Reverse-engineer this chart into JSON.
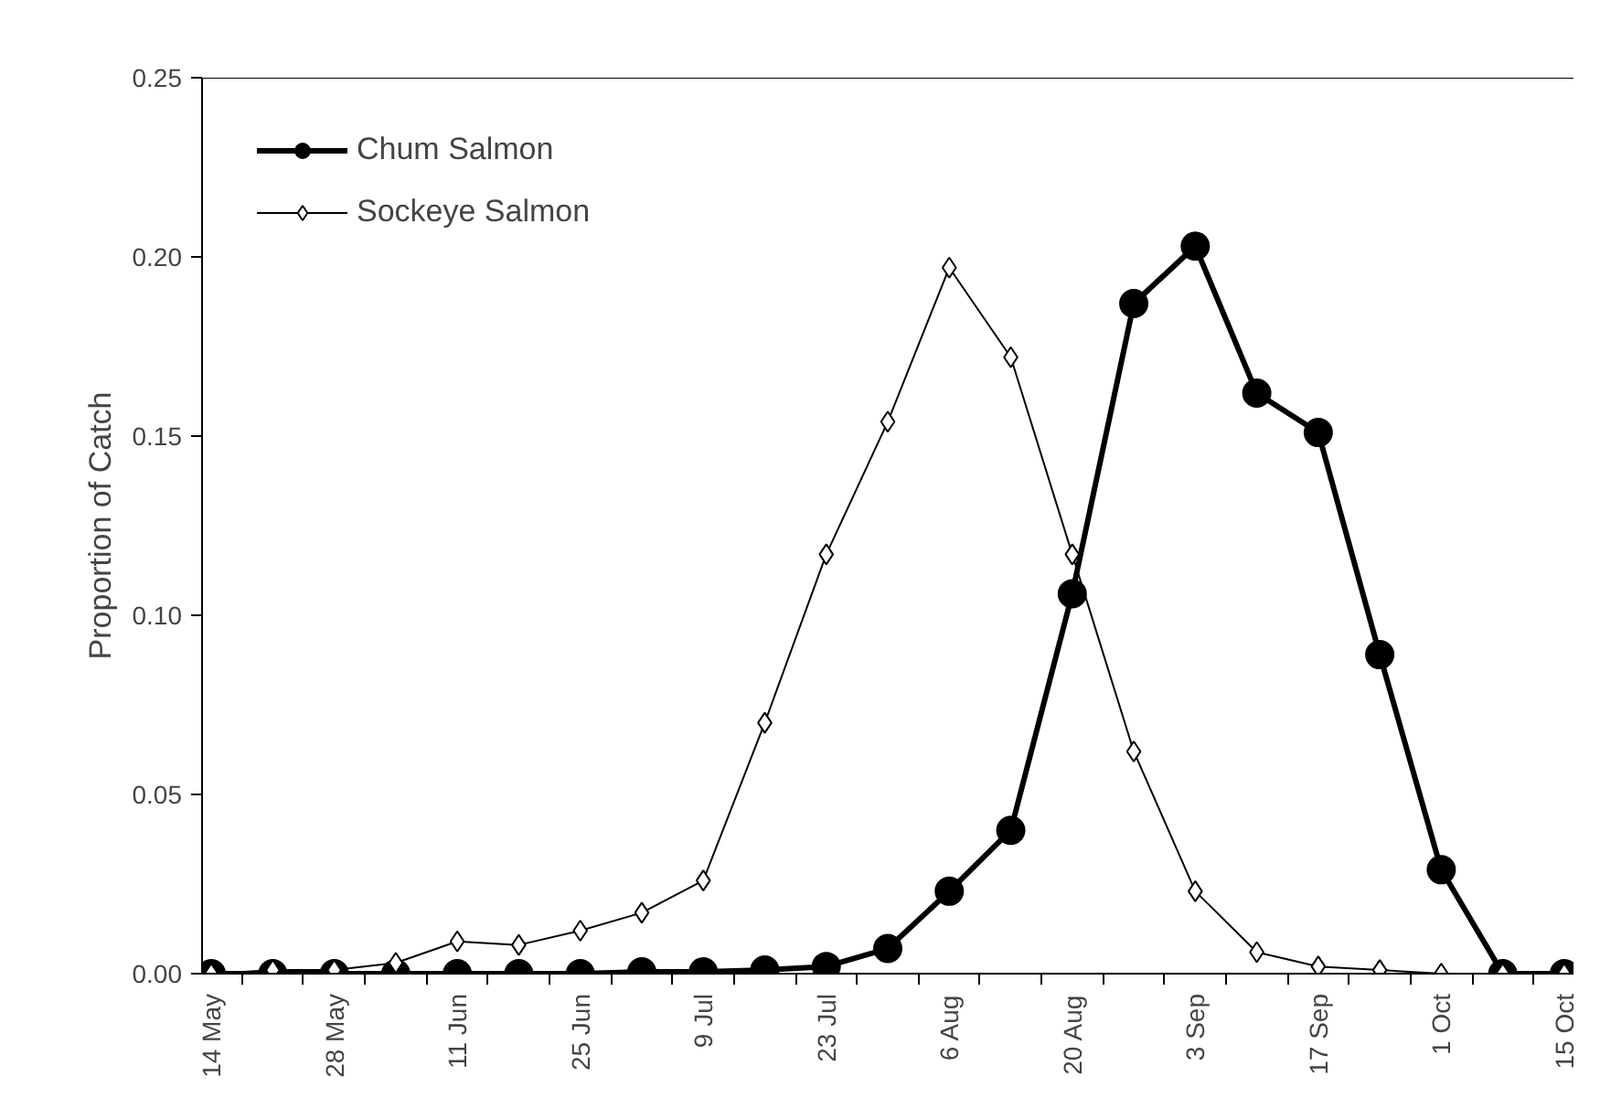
{
  "chart_data": {
    "type": "line",
    "ylabel": "Proportion of Catch",
    "categories": [
      "14 May",
      null,
      "28 May",
      null,
      "11 Jun",
      null,
      "25 Jun",
      null,
      "9 Jul",
      null,
      "23 Jul",
      null,
      "6 Aug",
      null,
      "20 Aug",
      null,
      "3 Sep",
      null,
      "17 Sep",
      null,
      "1 Oct",
      null,
      "15 Oct"
    ],
    "series": [
      {
        "name": "Chum Salmon",
        "color": "#000000",
        "marker": "circle",
        "values": [
          0,
          0,
          0,
          0,
          0,
          0,
          0,
          0.0005,
          0.0005,
          0.001,
          0.002,
          0.007,
          0.023,
          0.04,
          0.106,
          0.187,
          0.203,
          0.162,
          0.151,
          0.089,
          0.029,
          0,
          0
        ]
      },
      {
        "name": "Sockeye Salmon",
        "color": "#000000",
        "marker": "diamond",
        "values": [
          0,
          0.001,
          0.001,
          0.003,
          0.009,
          0.008,
          0.012,
          0.017,
          0.026,
          0.07,
          0.117,
          0.154,
          0.197,
          0.172,
          0.117,
          0.062,
          0.023,
          0.006,
          0.002,
          0.001,
          0.0,
          0,
          0
        ]
      }
    ],
    "ylim": [
      0,
      0.25
    ],
    "yticks": [
      {
        "value": 0,
        "label": "0.00"
      },
      {
        "value": 0.05,
        "label": "0.05"
      },
      {
        "value": 0.1,
        "label": "0.10"
      },
      {
        "value": 0.15,
        "label": "0.15"
      },
      {
        "value": 0.2,
        "label": "0.20"
      },
      {
        "value": 0.25,
        "label": "0.25"
      }
    ],
    "grid": false,
    "legend": "top left",
    "line_style": "solid"
  }
}
